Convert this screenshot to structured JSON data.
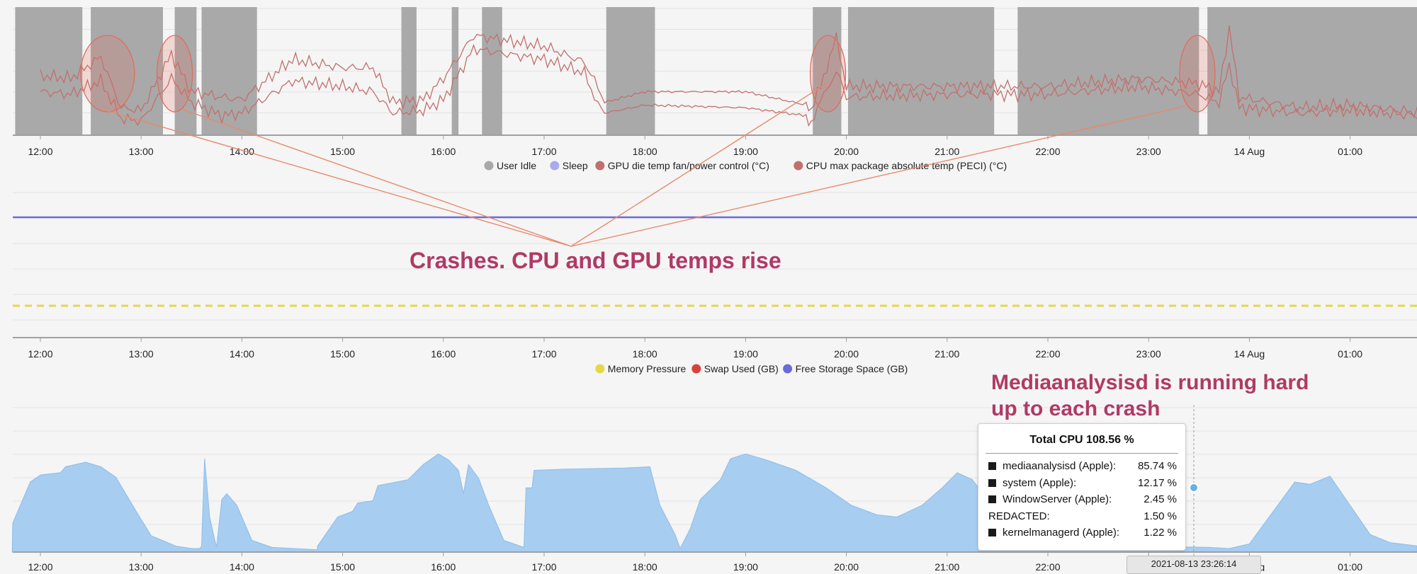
{
  "annotations": {
    "crash_note": "Crashes. CPU and GPU temps rise",
    "media_note_line1": "Mediaanalysisd is running hard",
    "media_note_line2": "up to each crash"
  },
  "colors": {
    "idle_band": "#a9a9a9",
    "temp_line": "#c0706e",
    "annotation": "#b03a64",
    "annotation_line": "#e8896a",
    "free_storage": "#6b6bdc",
    "memory_pressure": "#e3d84a",
    "swap": "#d9423c",
    "cpu_area": "#a7cdf1"
  },
  "tooltip": {
    "title": "Total CPU 108.56 %",
    "rows": [
      {
        "label": "mediaanalysisd (Apple):",
        "value": "85.74 %",
        "square": true
      },
      {
        "label": "system (Apple):",
        "value": "12.17 %",
        "square": true
      },
      {
        "label": "WindowServer (Apple):",
        "value": "2.45 %",
        "square": true
      },
      {
        "label": "REDACTED:",
        "value": "1.50 %",
        "square": false
      },
      {
        "label": "kernelmanagerd (Apple):",
        "value": "1.22 %",
        "square": true
      }
    ],
    "timestamp": "2021-08-13 23:26:14"
  },
  "chart_data": [
    {
      "type": "line",
      "x_ticks": [
        "12:00",
        "13:00",
        "14:00",
        "15:00",
        "16:00",
        "17:00",
        "18:00",
        "19:00",
        "20:00",
        "21:00",
        "22:00",
        "23:00",
        "14 Aug",
        "01:00"
      ],
      "legend_position": "bottom",
      "legend": [
        {
          "name": "User Idle",
          "color": "#a9a9a9"
        },
        {
          "name": "Sleep",
          "color": "#aaaaf0"
        },
        {
          "name": "GPU die temp fan/power control (°C)",
          "color": "#c0706e"
        },
        {
          "name": "CPU max package absolute temp (PECI) (°C)",
          "color": "#c0706e"
        }
      ],
      "user_idle_periods": [
        [
          "11:45",
          "12:25"
        ],
        [
          "12:30",
          "13:13"
        ],
        [
          "13:20",
          "13:33"
        ],
        [
          "13:36",
          "14:09"
        ],
        [
          "15:35",
          "15:44"
        ],
        [
          "16:05",
          "16:09"
        ],
        [
          "16:23",
          "16:35"
        ],
        [
          "17:37",
          "18:06"
        ],
        [
          "19:40",
          "19:57"
        ],
        [
          "20:01",
          "21:28"
        ],
        [
          "21:42",
          "23:30"
        ],
        [
          "23:35",
          "01:45"
        ]
      ],
      "crash_highlights": [
        "12:40",
        "13:20",
        "19:49",
        "23:29"
      ],
      "series": [
        {
          "name": "GPU die temp fan/power control (°C)",
          "values": [
            [
              0,
              46
            ],
            [
              0.3,
              45
            ],
            [
              0.6,
              50
            ],
            [
              0.8,
              36
            ],
            [
              1,
              35
            ],
            [
              1.3,
              51
            ],
            [
              1.5,
              42
            ],
            [
              1.8,
              37
            ],
            [
              2,
              38
            ],
            [
              2.5,
              50
            ],
            [
              3,
              48
            ],
            [
              3.3,
              46
            ],
            [
              3.5,
              38
            ],
            [
              3.8,
              39
            ],
            [
              4,
              43
            ],
            [
              4.3,
              62
            ],
            [
              5,
              58
            ],
            [
              5.4,
              53
            ],
            [
              5.5,
              44
            ],
            [
              5.6,
              38
            ],
            [
              6,
              41
            ],
            [
              7,
              40
            ],
            [
              7.6,
              37
            ],
            [
              7.65,
              35
            ],
            [
              7.9,
              54
            ],
            [
              8,
              44
            ],
            [
              9,
              45
            ],
            [
              10,
              45
            ],
            [
              10.9,
              48
            ],
            [
              11.5,
              45
            ],
            [
              11.7,
              42
            ],
            [
              11.8,
              56
            ],
            [
              11.9,
              40
            ],
            [
              12.5,
              38
            ],
            [
              13,
              39
            ],
            [
              14,
              36
            ]
          ]
        },
        {
          "name": "CPU max package absolute temp (PECI) (°C)",
          "values": [
            [
              0,
              52
            ],
            [
              0.3,
              51
            ],
            [
              0.6,
              59
            ],
            [
              0.8,
              40
            ],
            [
              1,
              39
            ],
            [
              1.3,
              60
            ],
            [
              1.5,
              46
            ],
            [
              1.8,
              44
            ],
            [
              2,
              43
            ],
            [
              2.5,
              58
            ],
            [
              3,
              55
            ],
            [
              3.3,
              55
            ],
            [
              3.5,
              42
            ],
            [
              3.8,
              43
            ],
            [
              4,
              51
            ],
            [
              4.3,
              67
            ],
            [
              5,
              63
            ],
            [
              5.4,
              57
            ],
            [
              5.5,
              50
            ],
            [
              5.6,
              42
            ],
            [
              6,
              46
            ],
            [
              7,
              46
            ],
            [
              7.6,
              41
            ],
            [
              7.65,
              38
            ],
            [
              7.9,
              66
            ],
            [
              8,
              48
            ],
            [
              9,
              48
            ],
            [
              10,
              48
            ],
            [
              10.9,
              51
            ],
            [
              11.5,
              49
            ],
            [
              11.7,
              46
            ],
            [
              11.8,
              70
            ],
            [
              11.9,
              44
            ],
            [
              12.5,
              40
            ],
            [
              13,
              41
            ],
            [
              14,
              37
            ]
          ]
        }
      ]
    },
    {
      "type": "line",
      "x_ticks": [
        "12:00",
        "13:00",
        "14:00",
        "15:00",
        "16:00",
        "17:00",
        "18:00",
        "19:00",
        "20:00",
        "21:00",
        "22:00",
        "23:00",
        "14 Aug",
        "01:00"
      ],
      "legend_position": "bottom",
      "legend": [
        {
          "name": "Memory Pressure",
          "color": "#e3d84a"
        },
        {
          "name": "Swap Used (GB)",
          "color": "#d9423c"
        },
        {
          "name": "Free Storage Space (GB)",
          "color": "#6b6bdc"
        }
      ],
      "series": [
        {
          "name": "Free Storage Space (GB)",
          "style": "solid",
          "values": [
            [
              -0.3,
              1
            ],
            [
              14,
              1
            ]
          ]
        },
        {
          "name": "Memory Pressure",
          "style": "dashed",
          "values": [
            [
              -0.3,
              1
            ],
            [
              14,
              1
            ]
          ]
        }
      ]
    },
    {
      "type": "area",
      "x_ticks": [
        "12:00",
        "13:00",
        "14:00",
        "15:00",
        "16:00",
        "17:00",
        "18:00",
        "19:00",
        "20:00",
        "21:00",
        "22:00",
        "23:00",
        "14 Aug",
        "01:00"
      ],
      "series": [
        {
          "name": "Total CPU (%)",
          "values": [
            [
              -0.28,
              25
            ],
            [
              -0.1,
              60
            ],
            [
              0,
              66
            ],
            [
              0.2,
              68
            ],
            [
              0.25,
              73
            ],
            [
              0.45,
              77
            ],
            [
              0.6,
              73
            ],
            [
              0.75,
              64
            ],
            [
              0.95,
              35
            ],
            [
              1.1,
              14
            ],
            [
              1.35,
              5
            ],
            [
              1.5,
              3
            ],
            [
              1.58,
              3
            ],
            [
              1.6,
              5
            ],
            [
              1.63,
              80
            ],
            [
              1.68,
              30
            ],
            [
              1.74,
              7
            ],
            [
              1.75,
              5
            ],
            [
              1.8,
              45
            ],
            [
              1.85,
              50
            ],
            [
              1.95,
              40
            ],
            [
              2.1,
              10
            ],
            [
              2.3,
              4
            ],
            [
              2.75,
              2
            ],
            [
              2.75,
              5
            ],
            [
              2.95,
              30
            ],
            [
              3.1,
              35
            ],
            [
              3.15,
              42
            ],
            [
              3.3,
              44
            ],
            [
              3.35,
              57
            ],
            [
              3.65,
              62
            ],
            [
              3.8,
              75
            ],
            [
              3.95,
              84
            ],
            [
              4.05,
              79
            ],
            [
              4.15,
              70
            ],
            [
              4.2,
              50
            ],
            [
              4.25,
              75
            ],
            [
              4.35,
              63
            ],
            [
              4.45,
              40
            ],
            [
              4.6,
              10
            ],
            [
              4.8,
              4
            ],
            [
              4.8,
              5
            ],
            [
              4.82,
              55
            ],
            [
              4.88,
              55
            ],
            [
              4.9,
              70
            ],
            [
              5.2,
              71
            ],
            [
              5.8,
              72
            ],
            [
              6.05,
              73
            ],
            [
              6.15,
              40
            ],
            [
              6.3,
              15
            ],
            [
              6.35,
              3
            ],
            [
              6.45,
              20
            ],
            [
              6.55,
              45
            ],
            [
              6.75,
              62
            ],
            [
              6.85,
              80
            ],
            [
              7.0,
              84
            ],
            [
              7.2,
              79
            ],
            [
              7.5,
              70
            ],
            [
              7.8,
              55
            ],
            [
              8.05,
              40
            ],
            [
              8.3,
              32
            ],
            [
              8.5,
              30
            ],
            [
              8.75,
              40
            ],
            [
              8.95,
              55
            ],
            [
              9.1,
              68
            ],
            [
              9.25,
              62
            ],
            [
              9.4,
              45
            ],
            [
              9.6,
              20
            ],
            [
              9.8,
              10
            ],
            [
              10.1,
              5
            ],
            [
              10.6,
              5
            ],
            [
              10.8,
              6
            ],
            [
              11,
              5
            ],
            [
              11.6,
              4
            ],
            [
              11.8,
              3
            ],
            [
              12.0,
              7
            ],
            [
              12.45,
              60
            ],
            [
              12.6,
              58
            ],
            [
              12.8,
              65
            ],
            [
              13.0,
              40
            ],
            [
              13.2,
              15
            ],
            [
              13.4,
              8
            ],
            [
              13.7,
              5
            ],
            [
              14,
              5
            ]
          ]
        }
      ]
    }
  ]
}
